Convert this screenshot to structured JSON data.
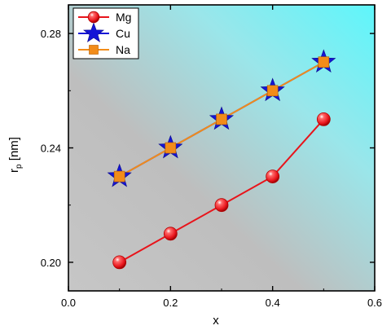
{
  "chart_data": {
    "type": "line",
    "xlabel": "x",
    "ylabel_main": "r",
    "ylabel_sub": "p",
    "ylabel_unit": " [nm]",
    "xlim": [
      0.0,
      0.6
    ],
    "ylim": [
      0.19,
      0.29
    ],
    "x_ticks": [
      0.0,
      0.2,
      0.4,
      0.6
    ],
    "x_tick_labels": [
      "0.0",
      "0.2",
      "0.4",
      "0.6"
    ],
    "y_ticks": [
      0.2,
      0.24,
      0.28
    ],
    "y_tick_labels": [
      "0.20",
      "0.24",
      "0.28"
    ],
    "grid": false,
    "legend_position": "top-left",
    "background": "gradient gray to cyan",
    "series": [
      {
        "name": "Mg",
        "x": [
          0.1,
          0.2,
          0.3,
          0.4,
          0.5
        ],
        "y": [
          0.2,
          0.21,
          0.22,
          0.23,
          0.25
        ],
        "color": "#e8141b",
        "marker": "sphere"
      },
      {
        "name": "Cu",
        "x": [
          0.1,
          0.2,
          0.3,
          0.4,
          0.5
        ],
        "y": [
          0.23,
          0.24,
          0.25,
          0.26,
          0.27
        ],
        "color": "#1515d6",
        "marker": "star"
      },
      {
        "name": "Na",
        "x": [
          0.1,
          0.2,
          0.3,
          0.4,
          0.5
        ],
        "y": [
          0.23,
          0.24,
          0.25,
          0.26,
          0.27
        ],
        "color": "#f28c1a",
        "marker": "square"
      }
    ]
  }
}
